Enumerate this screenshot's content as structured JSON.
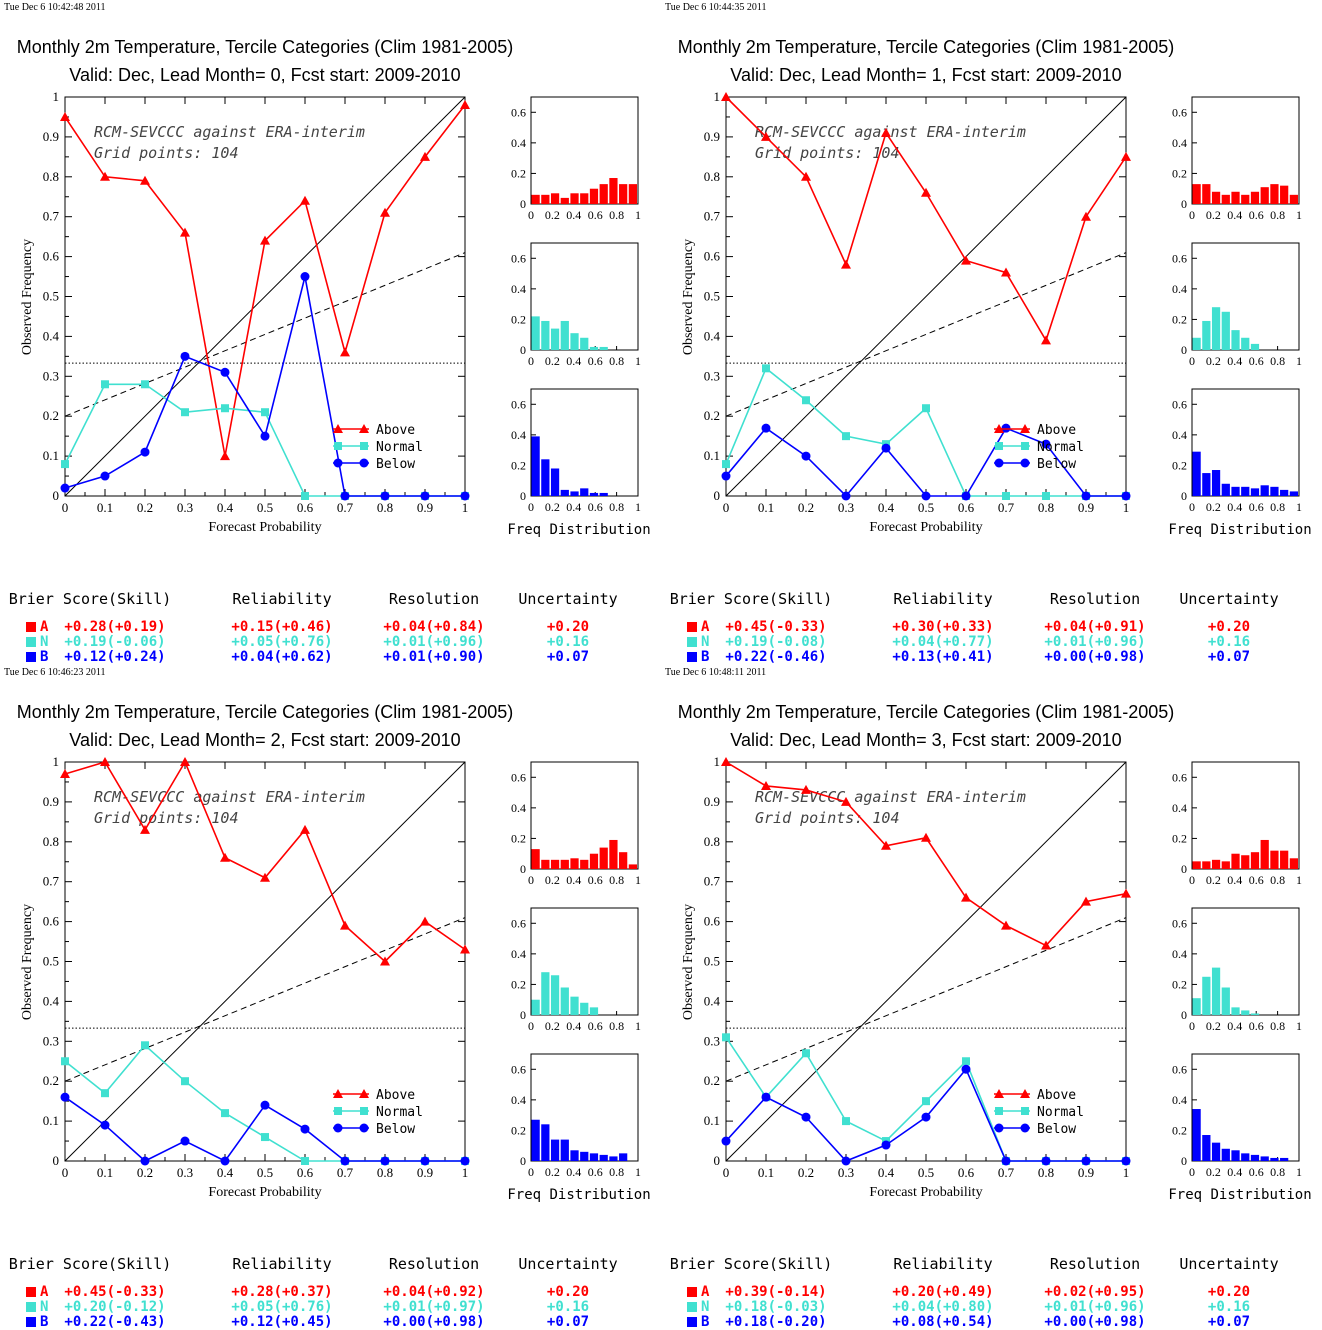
{
  "colors": {
    "above": "#ff0000",
    "normal": "#40e0d0",
    "below": "#0000ff"
  },
  "labels": {
    "xlabel": "Forecast Probability",
    "ylabel": "Observed Frequency",
    "freq_label": "Freq Distribution",
    "legend": [
      "Above",
      "Normal",
      "Below"
    ],
    "annot1": "RCM-SEVCCC against ERA-interim",
    "annot2": "Grid points:  104",
    "score_headers": [
      "Brier Score(Skill)",
      "Reliability",
      "Resolution",
      "Uncertainty"
    ],
    "score_letters": [
      "A",
      "N",
      "B"
    ]
  },
  "chart_data": [
    {
      "type": "line",
      "timestamp": "Tue Dec  6 10:42:48 2011",
      "title": "Monthly 2m Temperature, Tercile Categories (Clim 1981-2005)",
      "subtitle": "Valid: Dec, Lead Month= 0, Fcst start: 2009-2010",
      "x": [
        0,
        0.1,
        0.2,
        0.3,
        0.4,
        0.5,
        0.6,
        0.7,
        0.8,
        0.9,
        1
      ],
      "xlim": [
        0,
        1
      ],
      "ylim": [
        0,
        1
      ],
      "clim_line": 0.333,
      "skill_line": [
        0.2,
        0.61
      ],
      "series": [
        {
          "name": "Above",
          "values": [
            0.95,
            0.8,
            0.79,
            0.66,
            0.1,
            0.64,
            0.74,
            0.36,
            0.71,
            0.85,
            0.98
          ]
        },
        {
          "name": "Normal",
          "values": [
            0.08,
            0.28,
            0.28,
            0.21,
            0.22,
            0.21,
            0,
            0,
            0,
            0,
            0
          ]
        },
        {
          "name": "Below",
          "values": [
            0.02,
            0.05,
            0.11,
            0.35,
            0.31,
            0.15,
            0.55,
            0,
            0,
            0,
            0
          ]
        }
      ],
      "freq": {
        "above": [
          0.06,
          0.06,
          0.07,
          0.04,
          0.07,
          0.07,
          0.1,
          0.13,
          0.17,
          0.13,
          0.13
        ],
        "normal": [
          0.22,
          0.19,
          0.14,
          0.19,
          0.11,
          0.08,
          0.02,
          0.02,
          0,
          0,
          0
        ],
        "below": [
          0.39,
          0.24,
          0.18,
          0.04,
          0.03,
          0.05,
          0.02,
          0.02,
          0,
          0,
          0
        ]
      },
      "scores": [
        [
          "+0.28(+0.19)",
          "+0.15(+0.46)",
          "+0.04(+0.84)",
          "+0.20"
        ],
        [
          "+0.19(-0.06)",
          "+0.05(+0.76)",
          "+0.01(+0.96)",
          "+0.16"
        ],
        [
          "+0.12(+0.24)",
          "+0.04(+0.62)",
          "+0.01(+0.90)",
          "+0.07"
        ]
      ]
    },
    {
      "type": "line",
      "timestamp": "Tue Dec  6 10:44:35 2011",
      "title": "Monthly 2m Temperature, Tercile Categories (Clim 1981-2005)",
      "subtitle": "Valid: Dec, Lead Month= 1, Fcst start: 2009-2010",
      "x": [
        0,
        0.1,
        0.2,
        0.3,
        0.4,
        0.5,
        0.6,
        0.7,
        0.8,
        0.9,
        1
      ],
      "xlim": [
        0,
        1
      ],
      "ylim": [
        0,
        1
      ],
      "clim_line": 0.333,
      "skill_line": [
        0.2,
        0.61
      ],
      "series": [
        {
          "name": "Above",
          "values": [
            1.0,
            0.9,
            0.8,
            0.58,
            0.91,
            0.76,
            0.59,
            0.56,
            0.39,
            0.7,
            0.85
          ]
        },
        {
          "name": "Normal",
          "values": [
            0.08,
            0.32,
            0.24,
            0.15,
            0.13,
            0.22,
            0,
            0,
            0,
            0,
            0
          ]
        },
        {
          "name": "Below",
          "values": [
            0.05,
            0.17,
            0.1,
            0,
            0.12,
            0,
            0,
            0.17,
            0.13,
            0,
            0
          ]
        }
      ],
      "freq": {
        "above": [
          0.13,
          0.13,
          0.08,
          0.06,
          0.08,
          0.06,
          0.08,
          0.11,
          0.13,
          0.12,
          0.06
        ],
        "normal": [
          0.08,
          0.19,
          0.28,
          0.25,
          0.13,
          0.08,
          0.04,
          0,
          0,
          0,
          0
        ],
        "below": [
          0.29,
          0.15,
          0.17,
          0.08,
          0.06,
          0.06,
          0.05,
          0.07,
          0.06,
          0.04,
          0.03
        ]
      },
      "scores": [
        [
          "+0.45(-0.33)",
          "+0.30(+0.33)",
          "+0.04(+0.91)",
          "+0.20"
        ],
        [
          "+0.19(-0.08)",
          "+0.04(+0.77)",
          "+0.01(+0.96)",
          "+0.16"
        ],
        [
          "+0.22(-0.46)",
          "+0.13(+0.41)",
          "+0.00(+0.98)",
          "+0.07"
        ]
      ]
    },
    {
      "type": "line",
      "timestamp": "Tue Dec  6 10:46:23 2011",
      "title": "Monthly 2m Temperature, Tercile Categories (Clim 1981-2005)",
      "subtitle": "Valid: Dec, Lead Month= 2, Fcst start: 2009-2010",
      "x": [
        0,
        0.1,
        0.2,
        0.3,
        0.4,
        0.5,
        0.6,
        0.7,
        0.8,
        0.9,
        1
      ],
      "xlim": [
        0,
        1
      ],
      "ylim": [
        0,
        1
      ],
      "clim_line": 0.333,
      "skill_line": [
        0.2,
        0.61
      ],
      "series": [
        {
          "name": "Above",
          "values": [
            0.97,
            1.0,
            0.83,
            1.0,
            0.76,
            0.71,
            0.83,
            0.59,
            0.5,
            0.6,
            0.53
          ]
        },
        {
          "name": "Normal",
          "values": [
            0.25,
            0.17,
            0.29,
            0.2,
            0.12,
            0.06,
            0,
            0,
            0,
            0,
            0
          ]
        },
        {
          "name": "Below",
          "values": [
            0.16,
            0.09,
            0,
            0.05,
            0,
            0.14,
            0.08,
            0,
            0,
            0,
            0
          ]
        }
      ],
      "freq": {
        "above": [
          0.13,
          0.06,
          0.06,
          0.06,
          0.07,
          0.06,
          0.1,
          0.14,
          0.19,
          0.11,
          0.03
        ],
        "normal": [
          0.1,
          0.28,
          0.26,
          0.18,
          0.12,
          0.08,
          0.05,
          0,
          0,
          0,
          0
        ],
        "below": [
          0.27,
          0.24,
          0.14,
          0.14,
          0.07,
          0.06,
          0.05,
          0.04,
          0.03,
          0.05,
          0
        ]
      },
      "scores": [
        [
          "+0.45(-0.33)",
          "+0.28(+0.37)",
          "+0.04(+0.92)",
          "+0.20"
        ],
        [
          "+0.20(-0.12)",
          "+0.05(+0.76)",
          "+0.01(+0.97)",
          "+0.16"
        ],
        [
          "+0.22(-0.43)",
          "+0.12(+0.45)",
          "+0.00(+0.98)",
          "+0.07"
        ]
      ]
    },
    {
      "type": "line",
      "timestamp": "Tue Dec  6 10:48:11 2011",
      "title": "Monthly 2m Temperature, Tercile Categories (Clim 1981-2005)",
      "subtitle": "Valid: Dec, Lead Month= 3, Fcst start: 2009-2010",
      "x": [
        0,
        0.1,
        0.2,
        0.3,
        0.4,
        0.5,
        0.6,
        0.7,
        0.8,
        0.9,
        1
      ],
      "xlim": [
        0,
        1
      ],
      "ylim": [
        0,
        1
      ],
      "clim_line": 0.333,
      "skill_line": [
        0.2,
        0.61
      ],
      "series": [
        {
          "name": "Above",
          "values": [
            1.0,
            0.94,
            0.93,
            0.9,
            0.79,
            0.81,
            0.66,
            0.59,
            0.54,
            0.65,
            0.67
          ]
        },
        {
          "name": "Normal",
          "values": [
            0.31,
            0.16,
            0.27,
            0.1,
            0.05,
            0.15,
            0.25,
            0,
            0,
            0,
            0
          ]
        },
        {
          "name": "Below",
          "values": [
            0.05,
            0.16,
            0.11,
            0,
            0.04,
            0.11,
            0.23,
            0,
            0,
            0,
            0
          ]
        }
      ],
      "freq": {
        "above": [
          0.05,
          0.05,
          0.06,
          0.05,
          0.1,
          0.09,
          0.11,
          0.19,
          0.12,
          0.12,
          0.07
        ],
        "normal": [
          0.11,
          0.25,
          0.31,
          0.18,
          0.05,
          0.03,
          0.01,
          0,
          0,
          0,
          0
        ],
        "below": [
          0.34,
          0.17,
          0.12,
          0.08,
          0.07,
          0.05,
          0.04,
          0.03,
          0.02,
          0.02,
          0
        ]
      },
      "scores": [
        [
          "+0.39(-0.14)",
          "+0.20(+0.49)",
          "+0.02(+0.95)",
          "+0.20"
        ],
        [
          "+0.18(-0.03)",
          "+0.04(+0.80)",
          "+0.01(+0.96)",
          "+0.16"
        ],
        [
          "+0.18(-0.20)",
          "+0.08(+0.54)",
          "+0.00(+0.98)",
          "+0.07"
        ]
      ]
    }
  ]
}
